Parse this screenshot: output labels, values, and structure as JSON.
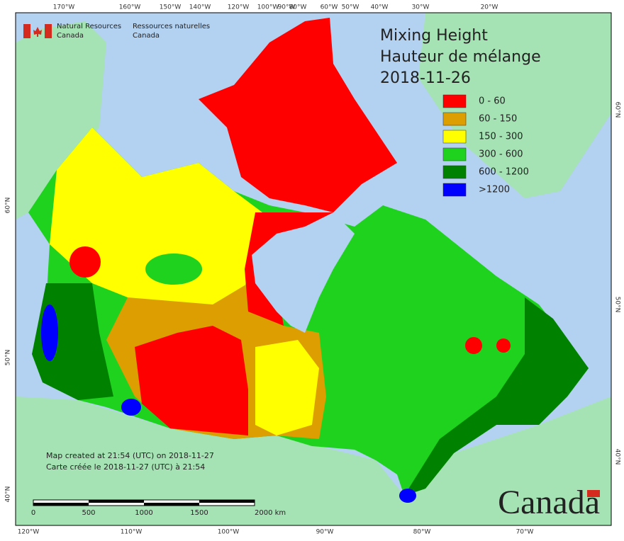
{
  "header": {
    "agency_en": [
      "Natural Resources",
      "Canada"
    ],
    "agency_fr": [
      "Ressources naturelles",
      "Canada"
    ]
  },
  "title": [
    "Mixing Height",
    "Hauteur de mélange",
    "2018-11-26"
  ],
  "legend": [
    {
      "label": "0 - 60",
      "color": "#ff0000"
    },
    {
      "label": "60 - 150",
      "color": "#dc9e00"
    },
    {
      "label": "150 - 300",
      "color": "#ffff00"
    },
    {
      "label": "300 - 600",
      "color": "#1ed21e"
    },
    {
      "label": "600 - 1200",
      "color": "#008200"
    },
    {
      "label": ">1200",
      "color": "#0000ff"
    }
  ],
  "graticule": {
    "top": [
      "170°W",
      "160°W",
      "150°W",
      "140°W",
      "120°W",
      "100°W",
      "90°W",
      "80°W",
      "60°W",
      "50°W",
      "40°W",
      "30°W",
      "20°W"
    ],
    "bottom": [
      "120°W",
      "110°W",
      "100°W",
      "90°W",
      "80°W",
      "70°W"
    ],
    "left": [
      "60°N",
      "50°N",
      "40°N"
    ],
    "right": [
      "60°N",
      "50°N",
      "40°N"
    ]
  },
  "notes": [
    "Map created at 21:54 (UTC) on 2018-11-27",
    "Carte créée le 2018-11-27 (UTC) à 21:54"
  ],
  "scale_bar": [
    "0",
    "500",
    "1000",
    "1500",
    "2000 km"
  ],
  "wordmark": "Canada"
}
